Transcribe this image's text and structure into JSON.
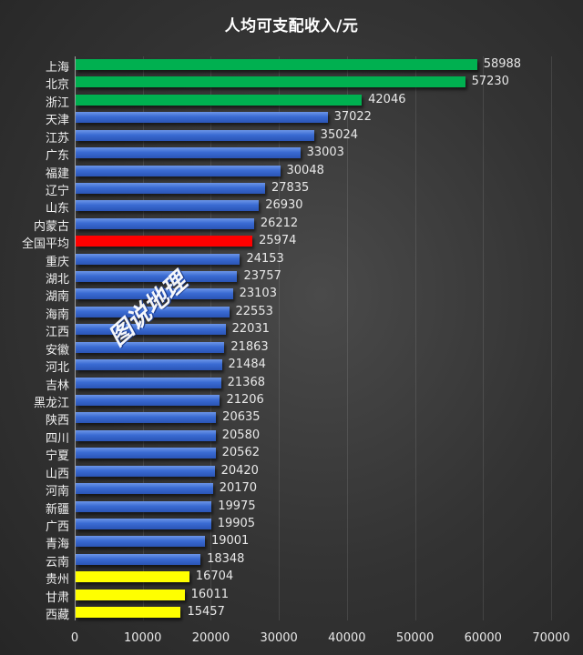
{
  "title": "人均可支配收入/元",
  "watermark": "图说地理",
  "colors": {
    "background": "#333333",
    "top3": "#00b050",
    "average": "#ff0000",
    "bottom3": "#ffff00",
    "default": "#3a6bd3"
  },
  "axis": {
    "ticks": [
      "0",
      "10000",
      "20000",
      "30000",
      "40000",
      "50000",
      "60000",
      "70000"
    ]
  },
  "chart_data": {
    "type": "bar",
    "orientation": "horizontal",
    "title": "人均可支配收入/元",
    "xlabel": "",
    "ylabel": "",
    "xlim": [
      0,
      70000
    ],
    "xticks": [
      0,
      10000,
      20000,
      30000,
      40000,
      50000,
      60000,
      70000
    ],
    "grid": true,
    "legend": "none",
    "data_labels": true,
    "categories": [
      "上海",
      "北京",
      "浙江",
      "天津",
      "江苏",
      "广东",
      "福建",
      "辽宁",
      "山东",
      "内蒙古",
      "全国平均",
      "重庆",
      "湖北",
      "湖南",
      "海南",
      "江西",
      "安徽",
      "河北",
      "吉林",
      "黑龙江",
      "陕西",
      "四川",
      "宁夏",
      "山西",
      "河南",
      "新疆",
      "广西",
      "青海",
      "云南",
      "贵州",
      "甘肃",
      "西藏"
    ],
    "values": [
      58988,
      57230,
      42046,
      37022,
      35024,
      33003,
      30048,
      27835,
      26930,
      26212,
      25974,
      24153,
      23757,
      23103,
      22553,
      22031,
      21863,
      21484,
      21368,
      21206,
      20635,
      20580,
      20562,
      20420,
      20170,
      19975,
      19905,
      19001,
      18348,
      16704,
      16011,
      15457
    ],
    "bar_colors": [
      "green",
      "green",
      "green",
      "blue",
      "blue",
      "blue",
      "blue",
      "blue",
      "blue",
      "blue",
      "red",
      "blue",
      "blue",
      "blue",
      "blue",
      "blue",
      "blue",
      "blue",
      "blue",
      "blue",
      "blue",
      "blue",
      "blue",
      "blue",
      "blue",
      "blue",
      "blue",
      "blue",
      "blue",
      "yellow",
      "yellow",
      "yellow"
    ],
    "annotations": [
      "Top 3 highlighted green",
      "National average highlighted red",
      "Bottom 3 highlighted yellow",
      "Watermark: 图说地理"
    ]
  }
}
